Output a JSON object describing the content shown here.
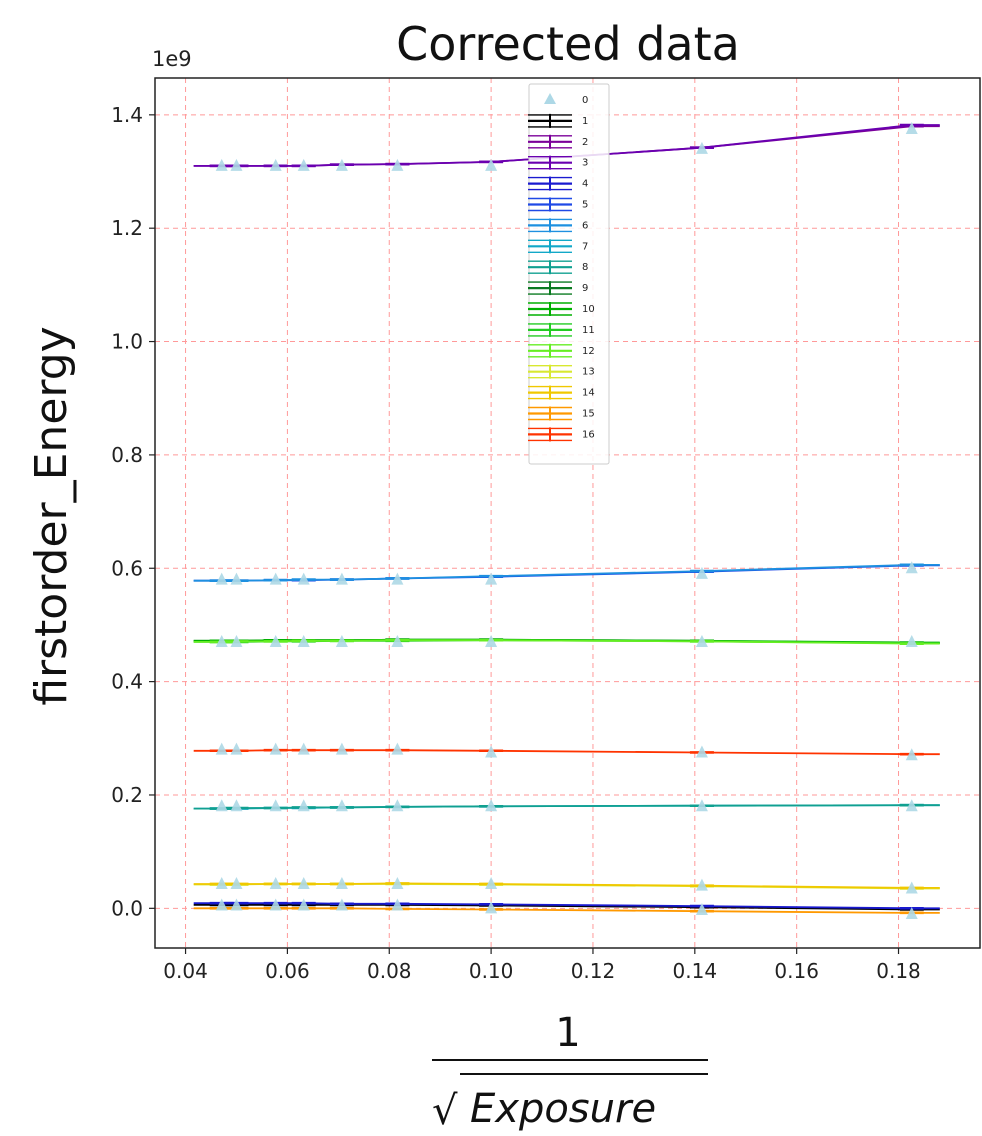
{
  "chart_data": {
    "type": "line",
    "title": "Corrected data",
    "ylabel": "firstorder_Energy",
    "xlabel": {
      "numerator": "1",
      "denominator": "Exposure",
      "radical": "√"
    },
    "y_offset_label": "1e9",
    "xlim": [
      0.034,
      0.196
    ],
    "ylim": [
      -0.07,
      1.465
    ],
    "y_scale": 1000000000,
    "grid": true,
    "grid_color": "#ff9999",
    "legend_placement": "top-center",
    "x_ticks": [
      0.04,
      0.06,
      0.08,
      0.1,
      0.12,
      0.14,
      0.16,
      0.18
    ],
    "x_tick_labels": [
      "0.04",
      "0.06",
      "0.08",
      "0.10",
      "0.12",
      "0.14",
      "0.16",
      "0.18"
    ],
    "y_ticks": [
      0.0,
      0.2,
      0.4,
      0.6,
      0.8,
      1.0,
      1.2,
      1.4
    ],
    "y_tick_labels": [
      "0.0",
      "0.2",
      "0.4",
      "0.6",
      "0.8",
      "1.0",
      "1.2",
      "1.4"
    ],
    "x": [
      0.0471,
      0.05,
      0.0577,
      0.0632,
      0.0707,
      0.0816,
      0.1,
      0.1414,
      0.1826
    ],
    "markers": {
      "name": "0",
      "color": "#add8e6",
      "y_groups": [
        [
          1.31,
          1.31,
          1.31,
          1.31,
          1.31,
          1.31,
          1.31,
          1.34,
          1.375
        ],
        [
          0.58,
          0.58,
          0.58,
          0.58,
          0.58,
          0.58,
          0.58,
          0.59,
          0.6
        ],
        [
          0.47,
          0.47,
          0.47,
          0.47,
          0.47,
          0.47,
          0.47,
          0.47,
          0.47
        ],
        [
          0.28,
          0.28,
          0.28,
          0.28,
          0.28,
          0.28,
          0.275,
          0.275,
          0.27
        ],
        [
          0.18,
          0.18,
          0.18,
          0.18,
          0.18,
          0.18,
          0.18,
          0.18,
          0.18
        ],
        [
          0.043,
          0.043,
          0.043,
          0.043,
          0.043,
          0.043,
          0.043,
          0.04,
          0.035
        ],
        [
          0.005,
          0.005,
          0.005,
          0.005,
          0.005,
          0.005,
          0.0,
          -0.003,
          -0.01
        ]
      ]
    },
    "series": [
      {
        "name": "1",
        "color": "#000000",
        "values": [
          0.006,
          0.006,
          0.006,
          0.006,
          0.006,
          0.006,
          0.005,
          0.002,
          -0.002
        ]
      },
      {
        "name": "2",
        "color": "#7b0099",
        "values": [
          1.31,
          1.31,
          1.31,
          1.31,
          1.312,
          1.313,
          1.317,
          1.342,
          1.38
        ]
      },
      {
        "name": "3",
        "color": "#6a00b0",
        "values": [
          1.31,
          1.31,
          1.31,
          1.31,
          1.312,
          1.313,
          1.317,
          1.342,
          1.382
        ]
      },
      {
        "name": "4",
        "color": "#1a1ad0",
        "values": [
          0.009,
          0.009,
          0.009,
          0.009,
          0.008,
          0.008,
          0.007,
          0.004,
          0.0
        ]
      },
      {
        "name": "5",
        "color": "#1f49e6",
        "values": [
          0.578,
          0.578,
          0.579,
          0.579,
          0.58,
          0.582,
          0.585,
          0.594,
          0.605
        ]
      },
      {
        "name": "6",
        "color": "#1e90e0",
        "values": [
          0.578,
          0.578,
          0.579,
          0.58,
          0.58,
          0.582,
          0.586,
          0.595,
          0.606
        ]
      },
      {
        "name": "7",
        "color": "#12a8c8",
        "values": [
          0.176,
          0.176,
          0.177,
          0.177,
          0.178,
          0.179,
          0.18,
          0.181,
          0.182
        ]
      },
      {
        "name": "8",
        "color": "#10a090",
        "values": [
          0.176,
          0.177,
          0.177,
          0.178,
          0.178,
          0.179,
          0.18,
          0.181,
          0.182
        ]
      },
      {
        "name": "9",
        "color": "#0a7a20",
        "values": [
          0.472,
          0.472,
          0.473,
          0.473,
          0.473,
          0.474,
          0.474,
          0.472,
          0.468
        ]
      },
      {
        "name": "10",
        "color": "#00b000",
        "values": [
          0.472,
          0.472,
          0.473,
          0.473,
          0.473,
          0.474,
          0.474,
          0.472,
          0.469
        ]
      },
      {
        "name": "11",
        "color": "#22cc22",
        "values": [
          0.47,
          0.47,
          0.471,
          0.471,
          0.472,
          0.472,
          0.473,
          0.471,
          0.468
        ]
      },
      {
        "name": "12",
        "color": "#66ee22",
        "values": [
          0.47,
          0.471,
          0.471,
          0.472,
          0.472,
          0.473,
          0.473,
          0.471,
          0.467
        ]
      },
      {
        "name": "13",
        "color": "#d8e830",
        "values": [
          0.042,
          0.042,
          0.043,
          0.043,
          0.043,
          0.043,
          0.042,
          0.039,
          0.035
        ]
      },
      {
        "name": "14",
        "color": "#f0c800",
        "values": [
          0.043,
          0.043,
          0.043,
          0.043,
          0.043,
          0.044,
          0.043,
          0.04,
          0.036
        ]
      },
      {
        "name": "15",
        "color": "#ff9900",
        "values": [
          0.0,
          0.0,
          0.0,
          0.0,
          0.0,
          -0.001,
          -0.002,
          -0.005,
          -0.008
        ]
      },
      {
        "name": "16",
        "color": "#ff3300",
        "values": [
          0.278,
          0.278,
          0.279,
          0.279,
          0.279,
          0.279,
          0.278,
          0.275,
          0.272
        ]
      }
    ]
  }
}
